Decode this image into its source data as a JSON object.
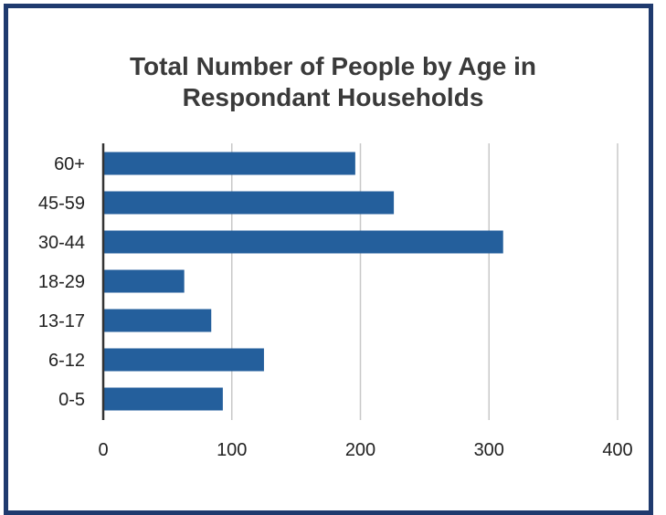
{
  "chart_data": {
    "type": "bar",
    "orientation": "horizontal",
    "title_lines": [
      "Total Number of People by Age in",
      "Respondant Households"
    ],
    "categories": [
      "60+",
      "45-59",
      "30-44",
      "18-29",
      "13-17",
      "6-12",
      "0-5"
    ],
    "values": [
      196,
      226,
      311,
      63,
      84,
      125,
      93
    ],
    "xlim": [
      0,
      400
    ],
    "xticks": [
      "0",
      "100",
      "200",
      "300",
      "400"
    ],
    "grid": true,
    "legend": "none",
    "bar_color": "#245f9c"
  }
}
